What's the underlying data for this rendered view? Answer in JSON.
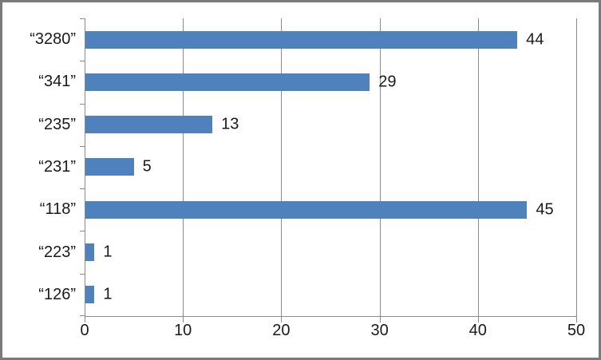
{
  "chart_data": {
    "type": "bar",
    "orientation": "horizontal",
    "title": "",
    "xlabel": "",
    "ylabel": "",
    "categories": [
      "“3280”",
      "“341”",
      "“235”",
      "“231”",
      "“118”",
      "“223”",
      "“126”"
    ],
    "values": [
      44,
      29,
      13,
      5,
      45,
      1,
      1
    ],
    "xlim": [
      0,
      50
    ],
    "xticks": [
      0,
      10,
      20,
      30,
      40,
      50
    ],
    "grid": "vertical gridlines at major x ticks",
    "legend": "none",
    "data_labels": "outside end of bars",
    "colors": {
      "bar_fill": "#4F81BD",
      "axis_line": "#8b8b8b",
      "gridline": "#8b8b8b",
      "text": "#1a1a1a",
      "frame_border": "#7a7a7a",
      "background": "#FFFFFF"
    }
  }
}
